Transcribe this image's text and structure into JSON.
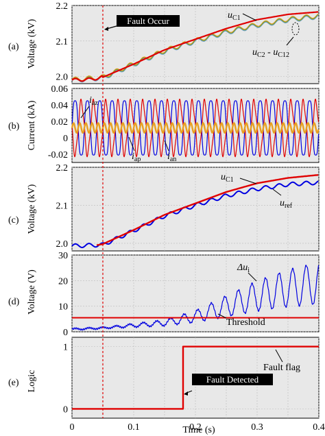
{
  "figure": {
    "xlabel": "Time (s)",
    "xticks": [
      "0",
      "0.1",
      "0.2",
      "0.3",
      "0.4"
    ]
  },
  "chart_data": [
    {
      "panel_label": "(a)",
      "type": "line",
      "ylabel": "Voltage (kV)",
      "xlim": [
        0,
        0.4
      ],
      "ylim": [
        1.98,
        2.2
      ],
      "yticks": [
        "2.0",
        "2.1",
        "2.2"
      ],
      "grid": true,
      "series": [
        {
          "name": "uC1",
          "color": "#e00000",
          "x": [
            0,
            0.03,
            0.05,
            0.1,
            0.15,
            0.2,
            0.25,
            0.3,
            0.35,
            0.4
          ],
          "y": [
            1.99,
            1.992,
            1.998,
            2.035,
            2.075,
            2.105,
            2.135,
            2.16,
            2.175,
            2.182
          ]
        },
        {
          "name": "uC2 - uC12",
          "color": "#7a9a3a",
          "x": [
            0,
            0.05,
            0.1,
            0.15,
            0.2,
            0.25,
            0.3,
            0.35,
            0.4
          ],
          "y": [
            1.99,
            1.997,
            2.035,
            2.072,
            2.1,
            2.125,
            2.145,
            2.16,
            2.17
          ]
        }
      ],
      "annotations": [
        "Fault Occur",
        "uC1",
        "uC2 - uC12"
      ]
    },
    {
      "panel_label": "(b)",
      "type": "line",
      "ylabel": "Current (kA)",
      "xlim": [
        0,
        0.4
      ],
      "ylim": [
        -0.03,
        0.06
      ],
      "yticks": [
        "0.06",
        "0.04",
        "0.02",
        "0",
        "-0.02"
      ],
      "grid": true,
      "series": [
        {
          "name": "iaz",
          "color": "#e8a020",
          "mean": 0.012,
          "amplitude": 0.006
        },
        {
          "name": "iap",
          "color": "#e00000",
          "mean": 0.012,
          "amplitude": 0.033
        },
        {
          "name": "ian",
          "color": "#0000e0",
          "mean": 0.012,
          "amplitude": 0.038
        }
      ],
      "annotations": [
        "iaz",
        "iap",
        "ian"
      ]
    },
    {
      "panel_label": "(c)",
      "type": "line",
      "ylabel": "Voltage (kV)",
      "xlim": [
        0,
        0.4
      ],
      "ylim": [
        1.98,
        2.2
      ],
      "yticks": [
        "2.0",
        "2.1",
        "2.2"
      ],
      "grid": true,
      "series": [
        {
          "name": "uC1",
          "color": "#e00000",
          "x": [
            0.04,
            0.05,
            0.1,
            0.15,
            0.2,
            0.25,
            0.3,
            0.35,
            0.4
          ],
          "y": [
            1.995,
            1.998,
            2.035,
            2.075,
            2.105,
            2.135,
            2.158,
            2.172,
            2.18
          ]
        },
        {
          "name": "uref",
          "color": "#0000e0",
          "x": [
            0,
            0.05,
            0.1,
            0.15,
            0.2,
            0.25,
            0.3,
            0.35,
            0.4
          ],
          "y": [
            1.993,
            1.996,
            2.033,
            2.072,
            2.1,
            2.125,
            2.143,
            2.155,
            2.16
          ]
        }
      ],
      "annotations": [
        "uC1",
        "uref"
      ]
    },
    {
      "panel_label": "(d)",
      "type": "line",
      "ylabel": "Voltage (V)",
      "xlim": [
        0,
        0.4
      ],
      "ylim": [
        0,
        30
      ],
      "yticks": [
        "30",
        "20",
        "10",
        "0"
      ],
      "grid": true,
      "series": [
        {
          "name": "Δui",
          "color": "#0000e0",
          "x": [
            0,
            0.05,
            0.1,
            0.15,
            0.2,
            0.25,
            0.3,
            0.35,
            0.4
          ],
          "y": [
            1,
            1.5,
            2.5,
            3.5,
            6,
            10,
            14,
            17,
            19
          ]
        },
        {
          "name": "Threshold",
          "color": "#e00000",
          "x": [
            0,
            0.4
          ],
          "y": [
            5.5,
            5.5
          ]
        }
      ],
      "annotations": [
        "Δui",
        "Threshold"
      ]
    },
    {
      "panel_label": "(e)",
      "type": "line",
      "ylabel": "Logic",
      "xlim": [
        0,
        0.4
      ],
      "ylim": [
        -0.15,
        1.15
      ],
      "yticks": [
        "1",
        "0"
      ],
      "grid": true,
      "series": [
        {
          "name": "Fault flag",
          "color": "#e00000",
          "x": [
            0,
            0.18,
            0.18,
            0.4
          ],
          "y": [
            0,
            0,
            1,
            1
          ]
        }
      ],
      "annotations": [
        "Fault Detected",
        "Fault flag"
      ]
    }
  ],
  "labels": {
    "fault_occur": "Fault Occur",
    "fault_detected": "Fault Detected",
    "uc1_a": "u",
    "uc1_a_sub": "C1",
    "ua2_a": "u",
    "ua2_a_sub": "C2",
    "ua2_dash": " - u",
    "ua2_a_sub2": "C12",
    "iaz": "i",
    "iaz_sub": "az",
    "iap": "i",
    "iap_sub": "ap",
    "ian": "i",
    "ian_sub": "an",
    "uc1_c": "u",
    "uc1_c_sub": "C1",
    "uref": "u",
    "uref_sub": "ref",
    "dui": "Δu",
    "dui_sub": "i",
    "threshold": "Threshold",
    "fault_flag": "Fault flag"
  },
  "fault_time": 0.05,
  "colors": {
    "red": "#e00000",
    "blue": "#0000e0",
    "orange": "#e8a020",
    "green": "#7a9a3a",
    "bg": "#e8e8e8"
  }
}
